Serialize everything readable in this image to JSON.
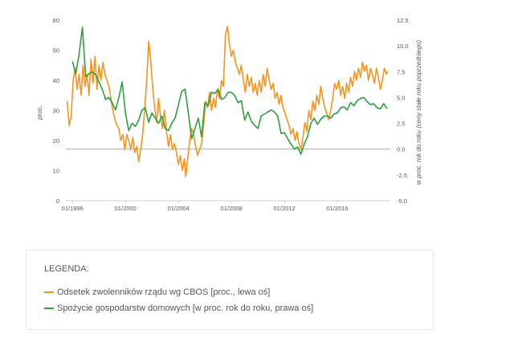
{
  "chart_data": {
    "type": "line",
    "title": "",
    "xlabel": "",
    "ylabel_left": "proc.",
    "ylabel_right": "w proc. rok do roku (ceny stałe roku poprzedniego)",
    "x_tick_labels": [
      "01/1996",
      "01/2000",
      "01/2004",
      "01/2008",
      "01/2012",
      "01/2016"
    ],
    "x_range": [
      1995.5,
      2020.0
    ],
    "y_left": {
      "ylim": [
        0,
        60
      ],
      "ticks": [
        "0",
        "10",
        "20",
        "30",
        "40",
        "50",
        "60"
      ]
    },
    "y_right": {
      "ylim": [
        -5.0,
        12.5
      ],
      "ticks": [
        "-5.0",
        "-2.5",
        "0.0",
        "2.5",
        "5.0",
        "7.5",
        "10.0",
        "12.5"
      ]
    },
    "zero_line_right": 0.0,
    "grid": false,
    "legend_position": "below",
    "series": [
      {
        "name": "Odsetek zwolenników rządu wg CBOS [proc., lewa oś]",
        "axis": "left",
        "color": "#f7941d",
        "points": [
          [
            1995.6,
            33
          ],
          [
            1995.75,
            25
          ],
          [
            1995.9,
            28
          ],
          [
            1996.05,
            40
          ],
          [
            1996.2,
            44
          ],
          [
            1996.35,
            37
          ],
          [
            1996.5,
            42
          ],
          [
            1996.65,
            35
          ],
          [
            1996.8,
            45
          ],
          [
            1996.95,
            38
          ],
          [
            1997.1,
            42
          ],
          [
            1997.25,
            35
          ],
          [
            1997.4,
            47
          ],
          [
            1997.55,
            39
          ],
          [
            1997.7,
            48
          ],
          [
            1997.85,
            37
          ],
          [
            1998.0,
            45
          ],
          [
            1998.15,
            40
          ],
          [
            1998.3,
            46
          ],
          [
            1998.45,
            42
          ],
          [
            1998.6,
            40
          ],
          [
            1998.75,
            38
          ],
          [
            1998.9,
            34
          ],
          [
            1999.05,
            30
          ],
          [
            1999.2,
            27
          ],
          [
            1999.35,
            25
          ],
          [
            1999.5,
            24
          ],
          [
            1999.65,
            20
          ],
          [
            1999.8,
            22
          ],
          [
            1999.95,
            17
          ],
          [
            2000.1,
            22
          ],
          [
            2000.25,
            20
          ],
          [
            2000.4,
            17
          ],
          [
            2000.55,
            21
          ],
          [
            2000.7,
            16
          ],
          [
            2000.85,
            18
          ],
          [
            2001.0,
            13
          ],
          [
            2001.15,
            17
          ],
          [
            2001.3,
            22
          ],
          [
            2001.45,
            30
          ],
          [
            2001.6,
            40
          ],
          [
            2001.75,
            53
          ],
          [
            2001.9,
            47
          ],
          [
            2002.05,
            38
          ],
          [
            2002.2,
            31
          ],
          [
            2002.35,
            26
          ],
          [
            2002.5,
            34
          ],
          [
            2002.65,
            28
          ],
          [
            2002.8,
            24
          ],
          [
            2002.95,
            30
          ],
          [
            2003.1,
            23
          ],
          [
            2003.25,
            18
          ],
          [
            2003.4,
            22
          ],
          [
            2003.55,
            17
          ],
          [
            2003.7,
            19
          ],
          [
            2003.85,
            16
          ],
          [
            2004.0,
            12
          ],
          [
            2004.15,
            15
          ],
          [
            2004.3,
            10
          ],
          [
            2004.45,
            14
          ],
          [
            2004.55,
            8
          ],
          [
            2004.7,
            14
          ],
          [
            2004.85,
            20
          ],
          [
            2005.0,
            24
          ],
          [
            2005.15,
            22
          ],
          [
            2005.3,
            18
          ],
          [
            2005.45,
            15
          ],
          [
            2005.6,
            17
          ],
          [
            2005.75,
            19
          ],
          [
            2005.9,
            25
          ],
          [
            2006.05,
            33
          ],
          [
            2006.2,
            31
          ],
          [
            2006.35,
            36
          ],
          [
            2006.5,
            30
          ],
          [
            2006.65,
            34
          ],
          [
            2006.8,
            31
          ],
          [
            2006.95,
            37
          ],
          [
            2007.1,
            34
          ],
          [
            2007.25,
            40
          ],
          [
            2007.4,
            38
          ],
          [
            2007.55,
            55
          ],
          [
            2007.7,
            58
          ],
          [
            2007.85,
            52
          ],
          [
            2008.0,
            48
          ],
          [
            2008.15,
            50
          ],
          [
            2008.3,
            46
          ],
          [
            2008.45,
            44
          ],
          [
            2008.6,
            42
          ],
          [
            2008.75,
            45
          ],
          [
            2008.9,
            40
          ],
          [
            2009.05,
            36
          ],
          [
            2009.2,
            42
          ],
          [
            2009.35,
            38
          ],
          [
            2009.5,
            41
          ],
          [
            2009.65,
            36
          ],
          [
            2009.8,
            39
          ],
          [
            2009.95,
            35
          ],
          [
            2010.1,
            40
          ],
          [
            2010.25,
            36
          ],
          [
            2010.4,
            42
          ],
          [
            2010.55,
            38
          ],
          [
            2010.7,
            44
          ],
          [
            2010.85,
            40
          ],
          [
            2011.0,
            37
          ],
          [
            2011.15,
            39
          ],
          [
            2011.3,
            34
          ],
          [
            2011.45,
            36
          ],
          [
            2011.6,
            32
          ],
          [
            2011.75,
            35
          ],
          [
            2011.9,
            31
          ],
          [
            2012.05,
            29
          ],
          [
            2012.2,
            27
          ],
          [
            2012.35,
            25
          ],
          [
            2012.5,
            22
          ],
          [
            2012.65,
            24
          ],
          [
            2012.8,
            20
          ],
          [
            2012.95,
            23
          ],
          [
            2013.1,
            19
          ],
          [
            2013.25,
            17
          ],
          [
            2013.4,
            21
          ],
          [
            2013.55,
            26
          ],
          [
            2013.7,
            23
          ],
          [
            2013.85,
            30
          ],
          [
            2014.0,
            27
          ],
          [
            2014.15,
            33
          ],
          [
            2014.3,
            30
          ],
          [
            2014.45,
            35
          ],
          [
            2014.6,
            32
          ],
          [
            2014.75,
            38
          ],
          [
            2014.9,
            34
          ],
          [
            2015.05,
            31
          ],
          [
            2015.2,
            29
          ],
          [
            2015.35,
            27
          ],
          [
            2015.5,
            30
          ],
          [
            2015.65,
            34
          ],
          [
            2015.8,
            39
          ],
          [
            2015.95,
            37
          ],
          [
            2016.1,
            40
          ],
          [
            2016.25,
            35
          ],
          [
            2016.4,
            38
          ],
          [
            2016.55,
            34
          ],
          [
            2016.7,
            39
          ],
          [
            2016.85,
            36
          ],
          [
            2017.0,
            41
          ],
          [
            2017.15,
            38
          ],
          [
            2017.3,
            43
          ],
          [
            2017.45,
            40
          ],
          [
            2017.6,
            44
          ],
          [
            2017.75,
            41
          ],
          [
            2017.9,
            46
          ],
          [
            2018.05,
            43
          ],
          [
            2018.2,
            45
          ],
          [
            2018.35,
            40
          ],
          [
            2018.5,
            44
          ],
          [
            2018.65,
            42
          ],
          [
            2018.8,
            39
          ],
          [
            2018.95,
            44
          ],
          [
            2019.1,
            41
          ],
          [
            2019.25,
            37
          ],
          [
            2019.4,
            40
          ],
          [
            2019.55,
            44
          ],
          [
            2019.7,
            42
          ],
          [
            2019.8,
            43
          ]
        ]
      },
      {
        "name": "Spożycie gospodarstw domowych [w proc. rok do roku, prawa oś]",
        "axis": "right",
        "color": "#2e9e3e",
        "points": [
          [
            1996.0,
            8.5
          ],
          [
            1996.25,
            7.3
          ],
          [
            1996.5,
            9.2
          ],
          [
            1996.75,
            11.8
          ],
          [
            1997.0,
            7.0
          ],
          [
            1997.25,
            7.3
          ],
          [
            1997.5,
            7.5
          ],
          [
            1997.75,
            7.2
          ],
          [
            1998.0,
            6.5
          ],
          [
            1998.25,
            5.8
          ],
          [
            1998.5,
            4.8
          ],
          [
            1998.75,
            5.0
          ],
          [
            1999.0,
            4.5
          ],
          [
            1999.25,
            3.8
          ],
          [
            1999.5,
            5.0
          ],
          [
            1999.75,
            6.5
          ],
          [
            2000.0,
            3.5
          ],
          [
            2000.25,
            1.8
          ],
          [
            2000.5,
            2.5
          ],
          [
            2000.75,
            2.2
          ],
          [
            2001.0,
            2.8
          ],
          [
            2001.25,
            3.8
          ],
          [
            2001.5,
            4.0
          ],
          [
            2001.75,
            2.6
          ],
          [
            2002.0,
            3.5
          ],
          [
            2002.25,
            3.0
          ],
          [
            2002.5,
            2.5
          ],
          [
            2002.75,
            3.2
          ],
          [
            2003.0,
            2.0
          ],
          [
            2003.25,
            1.8
          ],
          [
            2003.5,
            2.5
          ],
          [
            2003.75,
            3.0
          ],
          [
            2004.0,
            4.3
          ],
          [
            2004.25,
            5.6
          ],
          [
            2004.5,
            5.8
          ],
          [
            2004.75,
            3.5
          ],
          [
            2005.0,
            1.0
          ],
          [
            2005.25,
            2.0
          ],
          [
            2005.5,
            3.0
          ],
          [
            2005.75,
            1.2
          ],
          [
            2006.0,
            4.5
          ],
          [
            2006.25,
            4.2
          ],
          [
            2006.5,
            5.5
          ],
          [
            2006.75,
            5.4
          ],
          [
            2007.0,
            5.8
          ],
          [
            2007.25,
            4.8
          ],
          [
            2007.5,
            5.0
          ],
          [
            2007.75,
            5.5
          ],
          [
            2008.0,
            5.5
          ],
          [
            2008.25,
            5.2
          ],
          [
            2008.5,
            4.5
          ],
          [
            2008.75,
            4.7
          ],
          [
            2009.0,
            2.8
          ],
          [
            2009.25,
            3.6
          ],
          [
            2009.5,
            2.7
          ],
          [
            2009.75,
            2.3
          ],
          [
            2010.0,
            2.0
          ],
          [
            2010.25,
            3.2
          ],
          [
            2010.5,
            3.4
          ],
          [
            2010.75,
            3.6
          ],
          [
            2011.0,
            3.8
          ],
          [
            2011.25,
            3.6
          ],
          [
            2011.5,
            3.2
          ],
          [
            2011.75,
            1.5
          ],
          [
            2012.0,
            1.6
          ],
          [
            2012.25,
            1.0
          ],
          [
            2012.5,
            0.5
          ],
          [
            2012.75,
            0.0
          ],
          [
            2013.0,
            0.2
          ],
          [
            2013.25,
            -0.5
          ],
          [
            2013.5,
            0.5
          ],
          [
            2013.75,
            1.2
          ],
          [
            2014.0,
            2.5
          ],
          [
            2014.25,
            3.0
          ],
          [
            2014.5,
            2.4
          ],
          [
            2014.75,
            2.9
          ],
          [
            2015.0,
            3.2
          ],
          [
            2015.25,
            3.2
          ],
          [
            2015.5,
            3.0
          ],
          [
            2015.75,
            3.4
          ],
          [
            2016.0,
            3.5
          ],
          [
            2016.25,
            4.0
          ],
          [
            2016.5,
            4.1
          ],
          [
            2016.75,
            3.8
          ],
          [
            2017.0,
            4.5
          ],
          [
            2017.25,
            4.2
          ],
          [
            2017.5,
            4.7
          ],
          [
            2017.75,
            4.9
          ],
          [
            2018.0,
            5.0
          ],
          [
            2018.25,
            4.6
          ],
          [
            2018.5,
            4.3
          ],
          [
            2018.75,
            4.4
          ],
          [
            2019.0,
            4.0
          ],
          [
            2019.25,
            3.9
          ],
          [
            2019.5,
            4.4
          ],
          [
            2019.75,
            3.9
          ]
        ]
      }
    ]
  },
  "legend": {
    "title": "LEGENDA:",
    "items": [
      {
        "label": "Odsetek zwolenników rządu wg CBOS [proc., lewa oś]",
        "color": "#f7941d"
      },
      {
        "label": "Spożycie gospodarstw domowych [w proc. rok do roku, prawa oś]",
        "color": "#2e9e3e"
      }
    ]
  }
}
